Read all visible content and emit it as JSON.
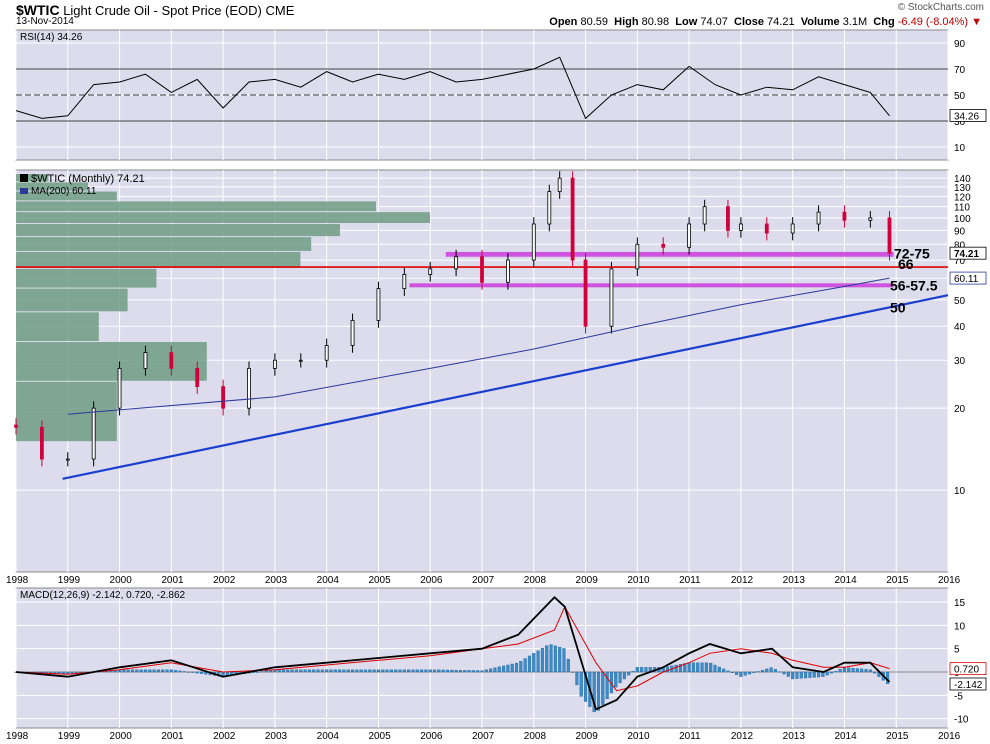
{
  "header": {
    "symbol": "$WTIC",
    "name": "Light Crude Oil - Spot Price (EOD)",
    "exchange": "CME",
    "date": "13-Nov-2014",
    "credit": "© StockCharts.com",
    "open_label": "Open",
    "open": "80.59",
    "high_label": "High",
    "high": "80.98",
    "low_label": "Low",
    "low": "74.07",
    "close_label": "Close",
    "close": "74.21",
    "volume_label": "Volume",
    "volume": "3.1M",
    "chg_label": "Chg",
    "chg": "-6.49 (-8.04%)"
  },
  "colors": {
    "panel_bg": "#dcdcec",
    "grid": "#ffffff",
    "up_candle": "#000000",
    "down_candle": "#d0003c",
    "support_band": "#cc44dd",
    "red_line": "#e00000",
    "trend_line": "#1a3fd0",
    "ma200": "#2b3a99",
    "volume_by_price": "#6f9c84",
    "macd_line": "#000000",
    "signal_line": "#e00000",
    "histogram": "#3b8bc9"
  },
  "chart_data": [
    {
      "type": "line",
      "panel": "RSI",
      "legend": "RSI(14) 34.26",
      "yticks": [
        10,
        30,
        50,
        70,
        90
      ],
      "ylim": [
        0,
        100
      ],
      "reference_lines": [
        30,
        50,
        70
      ],
      "last_value_label": "34.26",
      "x": [
        1998,
        1998.5,
        1999,
        1999.5,
        2000,
        2000.5,
        2001,
        2001.5,
        2002,
        2002.5,
        2003,
        2003.5,
        2004,
        2004.5,
        2005,
        2005.5,
        2006,
        2006.5,
        2007,
        2007.5,
        2008,
        2008.5,
        2009,
        2009.5,
        2010,
        2010.5,
        2011,
        2011.5,
        2012,
        2012.5,
        2013,
        2013.5,
        2014,
        2014.5,
        2014.87
      ],
      "values": [
        38,
        32,
        34,
        58,
        60,
        66,
        52,
        62,
        40,
        60,
        62,
        56,
        68,
        60,
        66,
        62,
        68,
        60,
        62,
        66,
        70,
        79,
        32,
        50,
        58,
        54,
        72,
        58,
        50,
        56,
        54,
        64,
        58,
        52,
        34
      ]
    },
    {
      "type": "candlestick",
      "panel": "price",
      "legend_symbol": "$WTIC (Monthly) 74.21",
      "legend_ma": "MA(200) 60.11",
      "ylim": [
        5,
        150
      ],
      "yticks": [
        10,
        20,
        30,
        40,
        50,
        60,
        70,
        80,
        90,
        100,
        110,
        120,
        130,
        140
      ],
      "xticks": [
        "1998",
        "1999",
        "2000",
        "2001",
        "2002",
        "2003",
        "2004",
        "2005",
        "2006",
        "2007",
        "2008",
        "2009",
        "2010",
        "2011",
        "2012",
        "2013",
        "2014",
        "2015",
        "2016"
      ],
      "x": [
        1998,
        1998.5,
        1999,
        1999.5,
        2000,
        2000.5,
        2001,
        2001.5,
        2002,
        2002.5,
        2003,
        2003.5,
        2004,
        2004.5,
        2005,
        2005.5,
        2006,
        2006.5,
        2007,
        2007.5,
        2008,
        2008.3,
        2008.5,
        2008.75,
        2009,
        2009.5,
        2010,
        2010.5,
        2011,
        2011.3,
        2011.75,
        2012,
        2012.5,
        2013,
        2013.5,
        2014,
        2014.5,
        2014.87
      ],
      "close": [
        17,
        13,
        13,
        20,
        28,
        32,
        28,
        24,
        20,
        28,
        30,
        30,
        34,
        42,
        55,
        62,
        65,
        72,
        58,
        70,
        95,
        125,
        140,
        70,
        40,
        65,
        80,
        78,
        95,
        110,
        90,
        95,
        88,
        95,
        105,
        98,
        100,
        74.21
      ],
      "last_price_label": "74.21",
      "ma200_label": "60.11",
      "ma200": {
        "x": [
          1999,
          2003,
          2006,
          2008,
          2010,
          2012,
          2014,
          2014.87
        ],
        "y": [
          19,
          22,
          28,
          33,
          40,
          48,
          56,
          60.11
        ]
      },
      "trend_line": {
        "x": [
          1998.9,
          2016
        ],
        "y": [
          11,
          52
        ]
      },
      "red_line": 66,
      "support_bands": [
        {
          "label": "72-75",
          "from": 72,
          "to": 75
        },
        {
          "label": "56-57.5",
          "from": 56,
          "to": 57.5
        }
      ],
      "level_labels": [
        "72-75",
        "66",
        "56-57.5",
        "50"
      ],
      "volume_by_price_bars": [
        {
          "price": [
            135,
            145
          ],
          "width": 0.09
        },
        {
          "price": [
            125,
            135
          ],
          "width": 0.2
        },
        {
          "price": [
            115,
            125
          ],
          "width": 0.28
        },
        {
          "price": [
            105,
            115
          ],
          "width": 1.0
        },
        {
          "price": [
            95,
            105
          ],
          "width": 1.15
        },
        {
          "price": [
            85,
            95
          ],
          "width": 0.9
        },
        {
          "price": [
            75,
            85
          ],
          "width": 0.82
        },
        {
          "price": [
            65,
            75
          ],
          "width": 0.79
        },
        {
          "price": [
            55,
            65
          ],
          "width": 0.39
        },
        {
          "price": [
            45,
            55
          ],
          "width": 0.31
        },
        {
          "price": [
            35,
            45
          ],
          "width": 0.23
        },
        {
          "price": [
            25,
            35
          ],
          "width": 0.53
        },
        {
          "price": [
            15,
            25
          ],
          "width": 0.28
        }
      ]
    },
    {
      "type": "line",
      "panel": "MACD",
      "legend": "MACD(12,26,9) -2.142, 0.720, -2.862",
      "yticks": [
        -10,
        -5,
        0,
        5,
        10,
        15
      ],
      "ylim": [
        -12,
        18
      ],
      "macd_label": "-2.142",
      "signal_label": "0.720",
      "x": [
        1998,
        1999,
        2000,
        2001,
        2002,
        2003,
        2004,
        2005,
        2006,
        2007,
        2007.7,
        2008.4,
        2008.6,
        2009.2,
        2009.6,
        2010,
        2010.5,
        2011,
        2011.4,
        2012,
        2012.6,
        2013,
        2013.6,
        2014,
        2014.5,
        2014.87
      ],
      "macd": [
        0,
        -1,
        1,
        2.5,
        -1,
        1,
        2,
        3,
        4,
        5,
        8,
        16,
        14,
        -8,
        -6,
        -1,
        1,
        4,
        6,
        4,
        5,
        1,
        0,
        2,
        2,
        -2.142
      ],
      "signal": [
        0,
        -0.5,
        0.5,
        2,
        0,
        0.5,
        1.5,
        2.5,
        3.5,
        5,
        6,
        9,
        14,
        2,
        -4,
        -3,
        0,
        2,
        4,
        5,
        4,
        2.5,
        1,
        1,
        2,
        0.72
      ],
      "histogram_x": [
        1998,
        1999,
        2000,
        2001,
        2002,
        2003,
        2004,
        2005,
        2006,
        2007,
        2007.7,
        2008,
        2008.3,
        2008.6,
        2008.9,
        2009.2,
        2009.6,
        2010,
        2010.5,
        2011,
        2011.4,
        2012,
        2012.6,
        2013,
        2013.6,
        2014,
        2014.5,
        2014.87
      ],
      "histogram": [
        0,
        -0.5,
        0.5,
        0.5,
        -1,
        0.5,
        0.5,
        0.5,
        0.5,
        0.3,
        2,
        4,
        6,
        5,
        -5,
        -9,
        -3,
        1,
        1,
        2,
        2,
        -1,
        1,
        -1.5,
        -1,
        1,
        0.5,
        -2.862
      ]
    }
  ]
}
